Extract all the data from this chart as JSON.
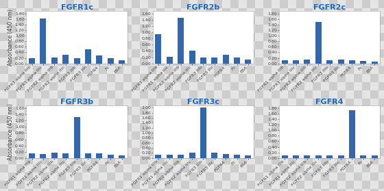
{
  "x_labels": [
    "FGFR1 alpha IIIb",
    "FGFR1 alpha IIIc",
    "FGFR2 alpha IIIb",
    "FGFR2 alpha IIIc",
    "FGFR3 IIIb",
    "FGFR3 IIIc",
    "FGFR4",
    "Fc",
    "BSA"
  ],
  "panels": [
    {
      "title": "FGFR1c",
      "ylim": [
        0,
        1.9
      ],
      "yticks": [
        0.0,
        0.2,
        0.4,
        0.6,
        0.8,
        1.0,
        1.2,
        1.4,
        1.6,
        1.8
      ],
      "values": [
        0.18,
        1.62,
        0.22,
        0.3,
        0.2,
        0.52,
        0.28,
        0.18,
        0.12
      ]
    },
    {
      "title": "FGFR2b",
      "ylim": [
        0,
        1.7
      ],
      "yticks": [
        0.0,
        0.2,
        0.4,
        0.6,
        0.8,
        1.0,
        1.2,
        1.4,
        1.6
      ],
      "values": [
        0.95,
        0.22,
        1.47,
        0.4,
        0.2,
        0.18,
        0.28,
        0.18,
        0.13
      ]
    },
    {
      "title": "FGFR2c",
      "ylim": [
        0,
        1.9
      ],
      "yticks": [
        0.0,
        0.2,
        0.4,
        0.6,
        0.8,
        1.0,
        1.2,
        1.4,
        1.6,
        1.8
      ],
      "values": [
        0.12,
        0.12,
        0.13,
        1.5,
        0.12,
        0.15,
        0.12,
        0.1,
        0.07
      ]
    },
    {
      "title": "FGFR3b",
      "ylim": [
        0,
        1.7
      ],
      "yticks": [
        0.0,
        0.2,
        0.4,
        0.6,
        0.8,
        1.0,
        1.2,
        1.4,
        1.6
      ],
      "values": [
        0.15,
        0.12,
        0.18,
        0.15,
        1.32,
        0.15,
        0.15,
        0.1,
        0.08
      ]
    },
    {
      "title": "FGFR3c",
      "ylim": [
        0,
        2.1
      ],
      "yticks": [
        0.0,
        0.2,
        0.4,
        0.6,
        0.8,
        1.0,
        1.2,
        1.4,
        1.6,
        1.8,
        2.0
      ],
      "values": [
        0.12,
        0.12,
        0.14,
        0.2,
        2.0,
        0.2,
        0.15,
        0.12,
        0.1
      ]
    },
    {
      "title": "FGFR4",
      "ylim": [
        0,
        1.9
      ],
      "yticks": [
        0.0,
        0.2,
        0.4,
        0.6,
        0.8,
        1.0,
        1.2,
        1.4,
        1.6,
        1.8
      ],
      "values": [
        0.1,
        0.1,
        0.1,
        0.1,
        0.1,
        0.1,
        1.72,
        0.1,
        0.1
      ]
    }
  ],
  "bar_color": "#3366aa",
  "title_color": "#1a6bbf",
  "ylabel": "Absorbance (450 nm)",
  "background_color": "#d8d8d8",
  "plot_background": "#ffffff",
  "title_fontsize": 8,
  "tick_fontsize": 4.5,
  "ylabel_fontsize": 5.5
}
